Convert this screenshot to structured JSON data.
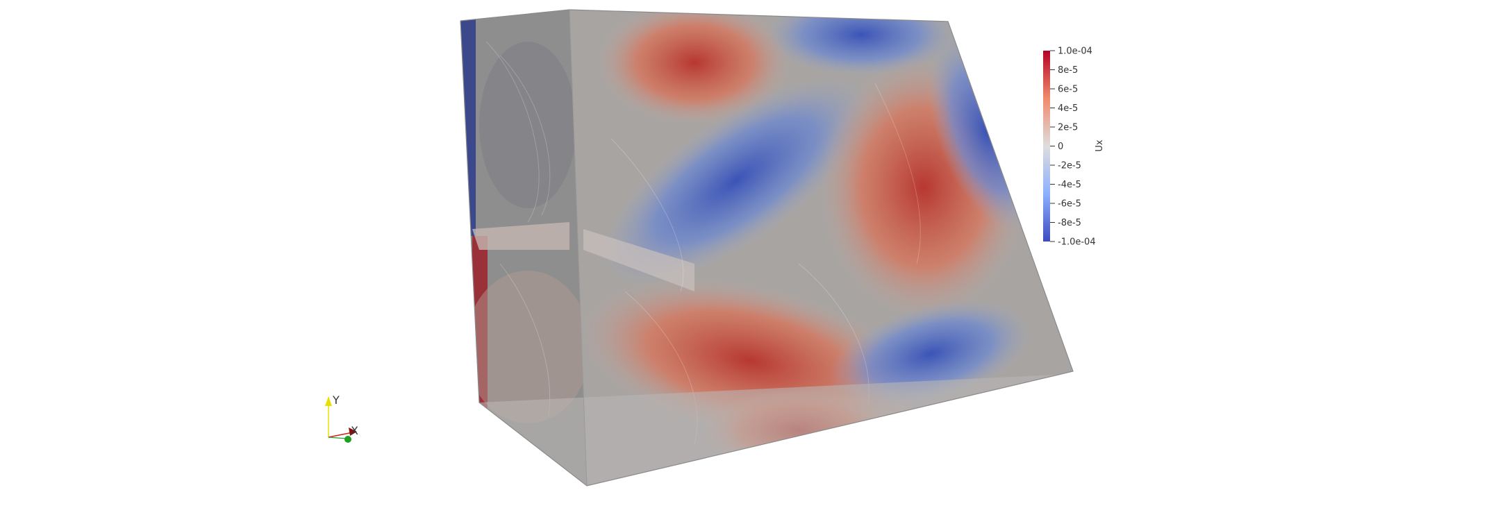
{
  "scalar_bar": {
    "title": "Ux",
    "range": [
      -0.0001,
      0.0001
    ],
    "ticks": [
      {
        "value": 0.0001,
        "label": "1.0e-04"
      },
      {
        "value": 8e-05,
        "label": "8e-5"
      },
      {
        "value": 6e-05,
        "label": "6e-5"
      },
      {
        "value": 4e-05,
        "label": "4e-5"
      },
      {
        "value": 2e-05,
        "label": "2e-5"
      },
      {
        "value": 0,
        "label": "0"
      },
      {
        "value": -2e-05,
        "label": "-2e-5"
      },
      {
        "value": -4e-05,
        "label": "-4e-5"
      },
      {
        "value": -6e-05,
        "label": "-6e-5"
      },
      {
        "value": -8e-05,
        "label": "-8e-5"
      },
      {
        "value": -0.0001,
        "label": "-1.0e-04"
      }
    ],
    "colormap": {
      "high": "#b40426",
      "mid": "#dddddd",
      "low": "#3b4cc0"
    }
  },
  "orientation_axes": {
    "y_label": "Y",
    "x_label": "X",
    "colors": {
      "y": "#e8e000",
      "x": "#d02020",
      "z": "#20a020"
    }
  }
}
